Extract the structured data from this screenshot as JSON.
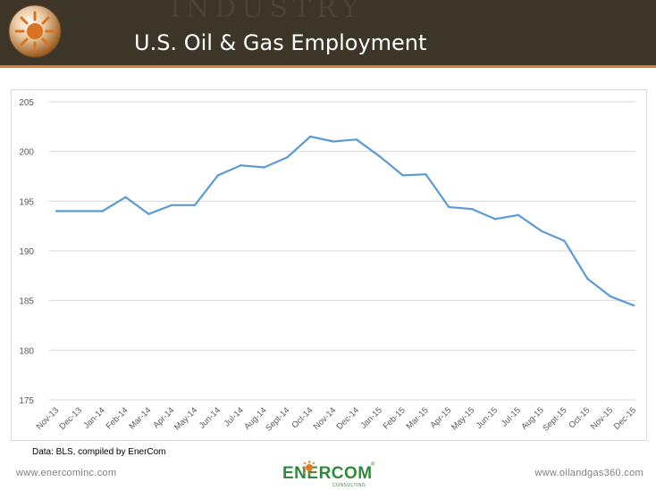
{
  "header": {
    "title": "U.S. Oil & Gas Employment",
    "background_word": "INDUSTRY"
  },
  "colors": {
    "header_bg": "#3e3529",
    "accent": "#e07b2a",
    "series_line": "#5b9bd5",
    "brand_green": "#2f8a3c"
  },
  "chart_data": {
    "type": "line",
    "title": "",
    "xlabel": "",
    "ylabel": "",
    "ylim": [
      175,
      205
    ],
    "yticks": [
      175,
      180,
      185,
      190,
      195,
      200,
      205
    ],
    "grid": true,
    "legend": "none",
    "categories": [
      "Nov-13",
      "Dec-13",
      "Jan-14",
      "Feb-14",
      "Mar-14",
      "Apr-14",
      "May-14",
      "Jun-14",
      "Jul-14",
      "Aug-14",
      "Sept-14",
      "Oct-14",
      "Nov-14",
      "Dec-14",
      "Jan-15",
      "Feb-15",
      "Mar-15",
      "Apr-15",
      "May-15",
      "Jun-15",
      "Jul-15",
      "Aug-15",
      "Sept-15",
      "Oct-15",
      "Nov-15",
      "Dec-15"
    ],
    "series": [
      {
        "values": [
          194.0,
          194.0,
          194.0,
          195.4,
          193.7,
          194.6,
          194.6,
          197.6,
          198.6,
          198.4,
          199.4,
          201.5,
          201.0,
          201.2,
          199.5,
          197.6,
          197.7,
          194.4,
          194.2,
          193.2,
          193.6,
          192.0,
          191.0,
          187.2,
          185.4,
          184.5
        ]
      }
    ]
  },
  "source_note": "Data: BLS, compiled by EnerCom",
  "footer": {
    "left_url": "www.enercominc.com",
    "right_url": "www.oilandgas360.com",
    "brand_name": "ENERCOM",
    "brand_sub": "CONSULTING",
    "brand_reg": "®"
  }
}
